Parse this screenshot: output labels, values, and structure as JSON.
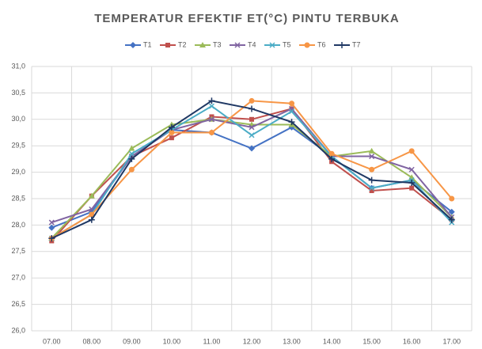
{
  "chart_data": {
    "type": "line",
    "title": "TEMPERATUR EFEKTIF ET(°C)  PINTU TERBUKA",
    "categories": [
      "07.00",
      "08.00",
      "09.00",
      "10.00",
      "11.00",
      "12.00",
      "13.00",
      "14.00",
      "15.00",
      "16.00",
      "17.00"
    ],
    "series": [
      {
        "name": "T1",
        "color": "#4472c4",
        "marker": "diamond",
        "values": [
          27.95,
          28.25,
          29.3,
          29.8,
          29.75,
          29.45,
          29.85,
          29.3,
          28.7,
          28.85,
          28.25
        ]
      },
      {
        "name": "T2",
        "color": "#c0504d",
        "marker": "square",
        "values": [
          27.7,
          28.55,
          29.3,
          29.65,
          30.05,
          30.0,
          30.2,
          29.2,
          28.65,
          28.7,
          28.1
        ]
      },
      {
        "name": "T3",
        "color": "#9bbb59",
        "marker": "triangle",
        "values": [
          27.75,
          28.55,
          29.45,
          29.9,
          30.0,
          29.9,
          29.9,
          29.3,
          29.4,
          28.9,
          28.15
        ]
      },
      {
        "name": "T4",
        "color": "#8064a2",
        "marker": "x",
        "values": [
          28.05,
          28.3,
          29.3,
          29.8,
          30.0,
          29.85,
          30.2,
          29.3,
          29.3,
          29.05,
          28.15
        ]
      },
      {
        "name": "T5",
        "color": "#4bacc6",
        "marker": "x",
        "values": [
          27.75,
          28.2,
          29.35,
          29.8,
          30.25,
          29.7,
          30.15,
          29.3,
          28.7,
          28.85,
          28.05
        ]
      },
      {
        "name": "T6",
        "color": "#f79646",
        "marker": "circle",
        "values": [
          27.75,
          28.2,
          29.05,
          29.75,
          29.75,
          30.35,
          30.3,
          29.35,
          29.05,
          29.4,
          28.5
        ]
      },
      {
        "name": "T7",
        "color": "#1f3864",
        "marker": "plus",
        "values": [
          27.75,
          28.1,
          29.25,
          29.85,
          30.35,
          30.2,
          29.95,
          29.25,
          28.85,
          28.8,
          28.1
        ]
      }
    ],
    "ylim": [
      26.0,
      31.0
    ],
    "yticks": [
      {
        "value": 26.0,
        "label": "26,0"
      },
      {
        "value": 26.5,
        "label": "26,5"
      },
      {
        "value": 27.0,
        "label": "27,0"
      },
      {
        "value": 27.5,
        "label": "27,5"
      },
      {
        "value": 28.0,
        "label": "28,0"
      },
      {
        "value": 28.5,
        "label": "28,5"
      },
      {
        "value": 29.0,
        "label": "29,0"
      },
      {
        "value": 29.5,
        "label": "29,5"
      },
      {
        "value": 30.0,
        "label": "30,0"
      },
      {
        "value": 30.5,
        "label": "30,5"
      },
      {
        "value": 31.0,
        "label": "31,0"
      }
    ],
    "grid": true
  }
}
